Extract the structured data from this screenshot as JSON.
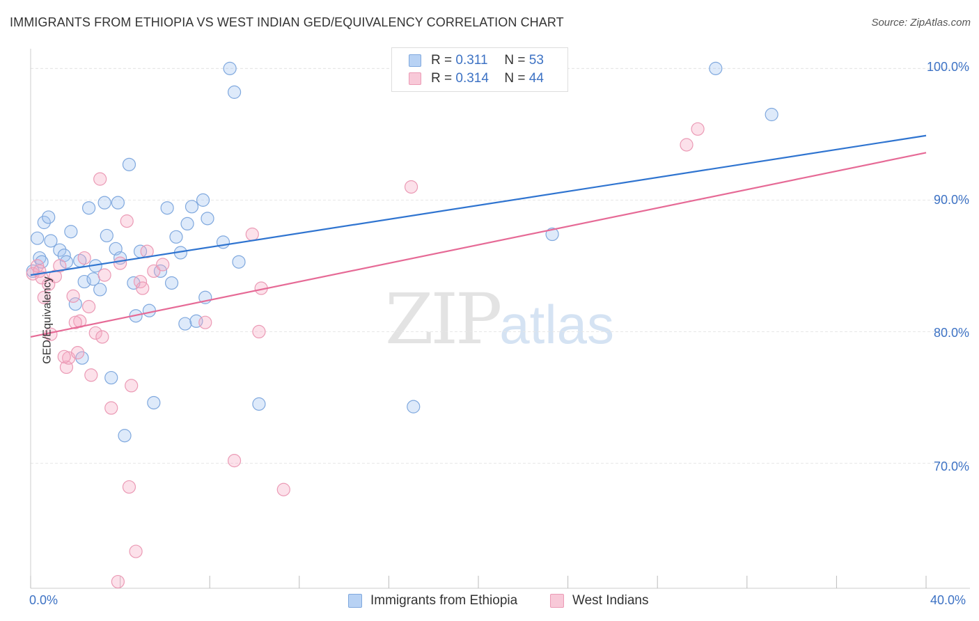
{
  "title": "IMMIGRANTS FROM ETHIOPIA VS WEST INDIAN GED/EQUIVALENCY CORRELATION CHART",
  "source": "Source: ZipAtlas.com",
  "watermark": {
    "zip": "ZIP",
    "atlas": "atlas"
  },
  "colors": {
    "blue": "#3d72c4",
    "blue_fill": "rgba(160,195,240,0.35)",
    "blue_stroke": "#7fa8de",
    "blue_line": "#2f74d0",
    "pink_fill": "rgba(245,170,195,0.35)",
    "pink_stroke": "#eb9ab5",
    "pink_line": "#e66a96",
    "grid": "#e6e6e6"
  },
  "legend": {
    "rows": [
      {
        "r_label": "R =",
        "r_value": "0.311",
        "n_label": "N =",
        "n_value": "53"
      },
      {
        "r_label": "R =",
        "r_value": "0.314",
        "n_label": "N =",
        "n_value": "44"
      }
    ]
  },
  "bottom_legend": {
    "series1": "Immigrants from Ethiopia",
    "series2": "West Indians"
  },
  "chart_data": {
    "type": "scatter",
    "title": "IMMIGRANTS FROM ETHIOPIA VS WEST INDIAN GED/EQUIVALENCY CORRELATION CHART",
    "xlabel": "",
    "ylabel": "GED/Equivalency",
    "xlim": [
      0,
      40
    ],
    "ylim": [
      60.5,
      101.5
    ],
    "x_tick_labels": [
      "0.0%",
      "40.0%"
    ],
    "y_ticks": [
      70,
      80,
      90,
      100
    ],
    "y_tick_labels": [
      "70.0%",
      "80.0%",
      "90.0%",
      "100.0%"
    ],
    "grid": true,
    "legend_position": "top-center",
    "series": [
      {
        "name": "Immigrants from Ethiopia",
        "r": 0.311,
        "n": 53,
        "trend": {
          "x": [
            0,
            40
          ],
          "y": [
            84.3,
            94.9
          ]
        },
        "points": [
          [
            0.3,
            87.1
          ],
          [
            0.4,
            85.6
          ],
          [
            0.5,
            85.3
          ],
          [
            0.6,
            88.3
          ],
          [
            0.8,
            88.7
          ],
          [
            0.9,
            86.9
          ],
          [
            1.3,
            86.2
          ],
          [
            1.5,
            85.8
          ],
          [
            1.6,
            85.3
          ],
          [
            1.8,
            87.6
          ],
          [
            2.0,
            82.1
          ],
          [
            2.2,
            85.4
          ],
          [
            2.3,
            78.0
          ],
          [
            2.4,
            83.8
          ],
          [
            2.6,
            89.4
          ],
          [
            2.8,
            84.0
          ],
          [
            2.9,
            85.0
          ],
          [
            3.1,
            83.2
          ],
          [
            3.3,
            89.8
          ],
          [
            3.4,
            87.3
          ],
          [
            3.6,
            76.5
          ],
          [
            3.8,
            86.3
          ],
          [
            3.9,
            89.8
          ],
          [
            4.0,
            85.6
          ],
          [
            4.2,
            72.1
          ],
          [
            4.4,
            92.7
          ],
          [
            4.6,
            83.7
          ],
          [
            4.7,
            81.2
          ],
          [
            4.9,
            86.1
          ],
          [
            5.3,
            81.6
          ],
          [
            5.5,
            74.6
          ],
          [
            5.8,
            84.6
          ],
          [
            6.1,
            89.4
          ],
          [
            6.3,
            83.7
          ],
          [
            6.5,
            87.2
          ],
          [
            6.7,
            86.0
          ],
          [
            6.9,
            80.6
          ],
          [
            7.0,
            88.2
          ],
          [
            7.2,
            89.5
          ],
          [
            7.4,
            80.8
          ],
          [
            7.7,
            90.0
          ],
          [
            7.8,
            82.6
          ],
          [
            7.9,
            88.6
          ],
          [
            8.6,
            86.8
          ],
          [
            8.9,
            100.0
          ],
          [
            9.1,
            98.2
          ],
          [
            9.3,
            85.3
          ],
          [
            10.2,
            74.5
          ],
          [
            17.1,
            74.3
          ],
          [
            23.3,
            87.4
          ],
          [
            30.6,
            100.0
          ],
          [
            33.1,
            96.5
          ],
          [
            0.1,
            84.6
          ]
        ]
      },
      {
        "name": "West Indians",
        "r": 0.314,
        "n": 44,
        "trend": {
          "x": [
            0,
            40
          ],
          "y": [
            79.6,
            93.6
          ]
        },
        "points": [
          [
            0.1,
            84.4
          ],
          [
            0.3,
            85.0
          ],
          [
            0.4,
            84.6
          ],
          [
            0.5,
            84.1
          ],
          [
            0.6,
            82.6
          ],
          [
            0.8,
            83.6
          ],
          [
            0.9,
            79.8
          ],
          [
            1.1,
            84.2
          ],
          [
            1.3,
            85.0
          ],
          [
            1.6,
            77.3
          ],
          [
            1.7,
            78.0
          ],
          [
            1.9,
            82.7
          ],
          [
            2.1,
            78.4
          ],
          [
            2.2,
            80.8
          ],
          [
            2.4,
            85.6
          ],
          [
            2.6,
            81.9
          ],
          [
            2.7,
            76.7
          ],
          [
            2.9,
            79.9
          ],
          [
            3.1,
            91.6
          ],
          [
            3.2,
            79.6
          ],
          [
            3.3,
            84.3
          ],
          [
            3.6,
            74.2
          ],
          [
            3.9,
            61.0
          ],
          [
            4.0,
            85.2
          ],
          [
            4.3,
            88.4
          ],
          [
            4.4,
            68.2
          ],
          [
            4.5,
            75.9
          ],
          [
            4.7,
            63.3
          ],
          [
            4.9,
            83.8
          ],
          [
            5.0,
            83.3
          ],
          [
            5.2,
            86.1
          ],
          [
            5.5,
            84.6
          ],
          [
            5.9,
            85.1
          ],
          [
            7.8,
            80.7
          ],
          [
            9.1,
            70.2
          ],
          [
            9.9,
            87.4
          ],
          [
            10.2,
            80.0
          ],
          [
            10.3,
            83.3
          ],
          [
            11.3,
            68.0
          ],
          [
            17.0,
            91.0
          ],
          [
            29.3,
            94.2
          ],
          [
            29.8,
            95.4
          ],
          [
            2.0,
            80.7
          ],
          [
            1.5,
            78.1
          ]
        ]
      }
    ]
  },
  "axis": {
    "ylabel": "GED/Equivalency",
    "x_min_label": "0.0%",
    "x_max_label": "40.0%"
  }
}
